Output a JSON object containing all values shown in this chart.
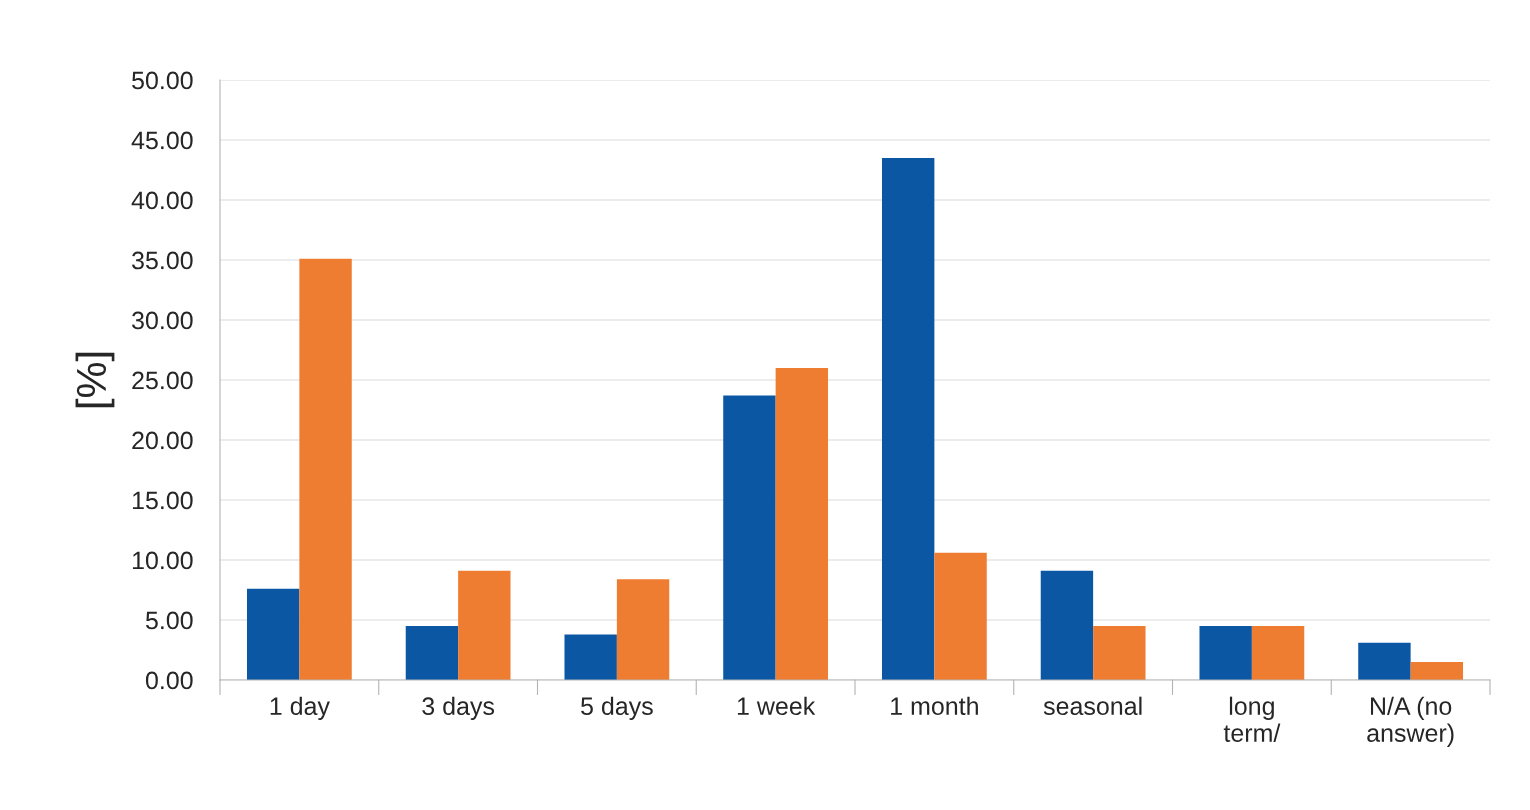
{
  "chart_data": {
    "type": "bar",
    "ylabel": "[%]",
    "categories": [
      "1 day",
      "3 days",
      "5 days",
      "1 week",
      "1 month",
      "seasonal",
      "long term/",
      "N/A (no answer)"
    ],
    "series": [
      {
        "color": "#0b57a4",
        "values": [
          7.6,
          4.5,
          3.8,
          23.7,
          43.5,
          9.1,
          4.5,
          3.1
        ]
      },
      {
        "color": "#ee7d31",
        "values": [
          35.1,
          9.1,
          8.4,
          26.0,
          10.6,
          4.5,
          4.5,
          1.5
        ]
      }
    ],
    "ylim": [
      0,
      50
    ],
    "yticks": [
      {
        "value": 0,
        "label": "0.00"
      },
      {
        "value": 5,
        "label": "5.00"
      },
      {
        "value": 10,
        "label": "10.00"
      },
      {
        "value": 15,
        "label": "15.00"
      },
      {
        "value": 20,
        "label": "20.00"
      },
      {
        "value": 25,
        "label": "25.00"
      },
      {
        "value": 30,
        "label": "30.00"
      },
      {
        "value": 35,
        "label": "35.00"
      },
      {
        "value": 40,
        "label": "40.00"
      },
      {
        "value": 45,
        "label": "45.00"
      },
      {
        "value": 50,
        "label": "50.00"
      }
    ],
    "grid": "y",
    "legend": false
  }
}
